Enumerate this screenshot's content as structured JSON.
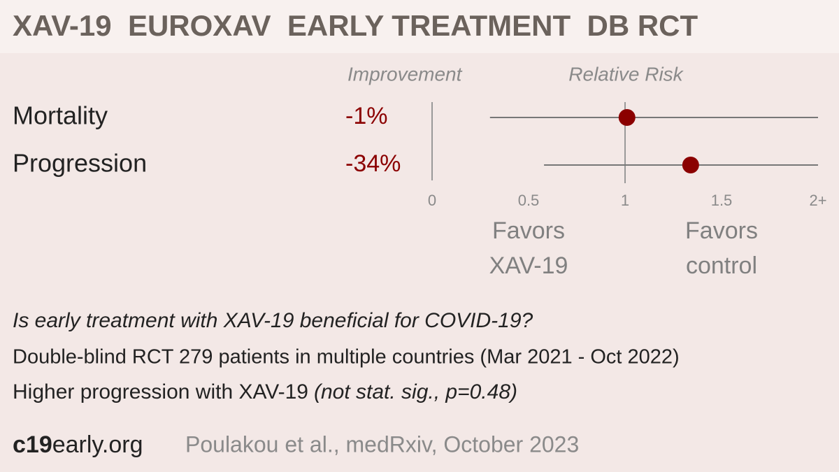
{
  "title": "XAV-19  EUROXAV  EARLY TREATMENT  DB RCT",
  "chart_data": {
    "type": "forest",
    "column_labels": {
      "improvement": "Improvement",
      "effect": "Relative Risk"
    },
    "categories": [
      "Mortality",
      "Progression"
    ],
    "improvement": {
      "values": [
        -1,
        -34
      ],
      "value_labels": [
        "-1%",
        "-34%"
      ]
    },
    "values": [
      1.01,
      1.34
    ],
    "ci_lower": [
      0.3,
      0.58
    ],
    "ci_upper": [
      2,
      2
    ],
    "color": "#8b0000",
    "reference": 1,
    "xlim": [
      0,
      2
    ],
    "xticks": [
      0,
      0.5,
      1,
      1.5,
      {
        "value": 2,
        "label": "2+"
      }
    ],
    "favors_left": [
      "Favors",
      "XAV-19"
    ],
    "favors_right": [
      "Favors",
      "control"
    ]
  },
  "footer": {
    "question": "Is early treatment with XAV-19 beneficial for COVID-19?",
    "details": "Double-blind RCT 279 patients in multiple countries (Mar 2021 - Oct 2022)",
    "result": "Higher progression with XAV-19",
    "note": "(not stat. sig., p=0.48)",
    "site_bold": "c19",
    "site_rest": "early.org",
    "citation": "Poulakou et al., medRxiv, October 2023"
  }
}
